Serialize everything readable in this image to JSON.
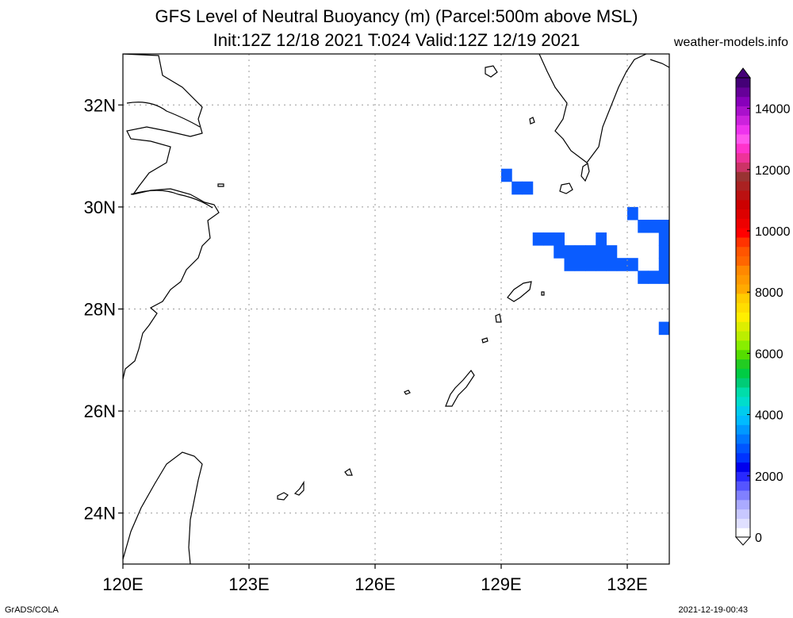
{
  "title_line1": "GFS Level of Neutral Buoyancy (m) (Parcel:500m above MSL)",
  "title_line2": "Init:12Z 12/18 2021 T:024 Valid:12Z 12/19 2021",
  "site": "weather-models.info",
  "footer_left": "GrADS/COLA",
  "footer_right": "2021-12-19-00:43",
  "lat_labels": [
    "32N",
    "30N",
    "28N",
    "26N",
    "24N"
  ],
  "lon_labels": [
    "120E",
    "123E",
    "126E",
    "129E",
    "132E"
  ],
  "colorbar": {
    "labels": [
      "0",
      "2000",
      "4000",
      "6000",
      "8000",
      "10000",
      "12000",
      "14000"
    ],
    "colors": [
      "#ffffff",
      "#e0e0ff",
      "#c8c8ff",
      "#aaaaff",
      "#8080ff",
      "#5555ff",
      "#2828ff",
      "#0000ee",
      "#0033ff",
      "#0055ff",
      "#0077ff",
      "#0099ff",
      "#00bbff",
      "#00ccee",
      "#00ddcc",
      "#00ddaa",
      "#00cc77",
      "#00cc44",
      "#22cc22",
      "#55dd00",
      "#88ee00",
      "#bbee00",
      "#ddee00",
      "#ffee00",
      "#ffdd00",
      "#ffcc00",
      "#ffaa00",
      "#ff9900",
      "#ff8800",
      "#ff6600",
      "#ff5500",
      "#ff3300",
      "#ff0000",
      "#ee0000",
      "#dd0000",
      "#cc0000",
      "#bb1111",
      "#aa2222",
      "#993333",
      "#cc3366",
      "#ee3399",
      "#ff33cc",
      "#ff55ee",
      "#ee33ee",
      "#cc22dd",
      "#aa11cc",
      "#8800bb",
      "#660099",
      "#440077"
    ]
  },
  "chart_data": {
    "type": "heatmap",
    "title": "GFS Level of Neutral Buoyancy (m) (Parcel:500m above MSL)",
    "subtitle": "Init:12Z 12/18 2021 T:024 Valid:12Z 12/19 2021",
    "xlim": [
      120,
      133
    ],
    "ylim": [
      23,
      33
    ],
    "units": "m",
    "cell_size_deg": 0.25,
    "cells": [
      {
        "lon": 129.125,
        "lat": 30.625,
        "value": 2500
      },
      {
        "lon": 129.375,
        "lat": 30.375,
        "value": 2500
      },
      {
        "lon": 129.625,
        "lat": 30.375,
        "value": 2500
      },
      {
        "lon": 132.125,
        "lat": 29.875,
        "value": 2500
      },
      {
        "lon": 132.375,
        "lat": 29.625,
        "value": 2500
      },
      {
        "lon": 132.625,
        "lat": 29.625,
        "value": 2500
      },
      {
        "lon": 132.875,
        "lat": 29.625,
        "value": 2500
      },
      {
        "lon": 129.875,
        "lat": 29.375,
        "value": 2500
      },
      {
        "lon": 130.125,
        "lat": 29.375,
        "value": 2500
      },
      {
        "lon": 130.375,
        "lat": 29.375,
        "value": 2500
      },
      {
        "lon": 131.375,
        "lat": 29.375,
        "value": 2500
      },
      {
        "lon": 132.875,
        "lat": 29.375,
        "value": 2500
      },
      {
        "lon": 130.375,
        "lat": 29.125,
        "value": 2500
      },
      {
        "lon": 130.625,
        "lat": 29.125,
        "value": 2500
      },
      {
        "lon": 130.875,
        "lat": 29.125,
        "value": 2500
      },
      {
        "lon": 131.125,
        "lat": 29.125,
        "value": 2500
      },
      {
        "lon": 131.375,
        "lat": 29.125,
        "value": 2500
      },
      {
        "lon": 131.625,
        "lat": 29.125,
        "value": 2500
      },
      {
        "lon": 132.875,
        "lat": 29.125,
        "value": 2500
      },
      {
        "lon": 130.625,
        "lat": 28.875,
        "value": 2500
      },
      {
        "lon": 130.875,
        "lat": 28.875,
        "value": 2500
      },
      {
        "lon": 131.125,
        "lat": 28.875,
        "value": 2500
      },
      {
        "lon": 131.375,
        "lat": 28.875,
        "value": 2500
      },
      {
        "lon": 131.625,
        "lat": 28.875,
        "value": 2500
      },
      {
        "lon": 131.875,
        "lat": 28.875,
        "value": 2500
      },
      {
        "lon": 132.125,
        "lat": 28.875,
        "value": 2500
      },
      {
        "lon": 132.875,
        "lat": 28.875,
        "value": 2500
      },
      {
        "lon": 132.375,
        "lat": 28.625,
        "value": 2500
      },
      {
        "lon": 132.625,
        "lat": 28.625,
        "value": 2500
      },
      {
        "lon": 132.875,
        "lat": 28.625,
        "value": 2500
      },
      {
        "lon": 132.875,
        "lat": 27.625,
        "value": 2500
      }
    ],
    "cell_color": "#0a5cff"
  }
}
